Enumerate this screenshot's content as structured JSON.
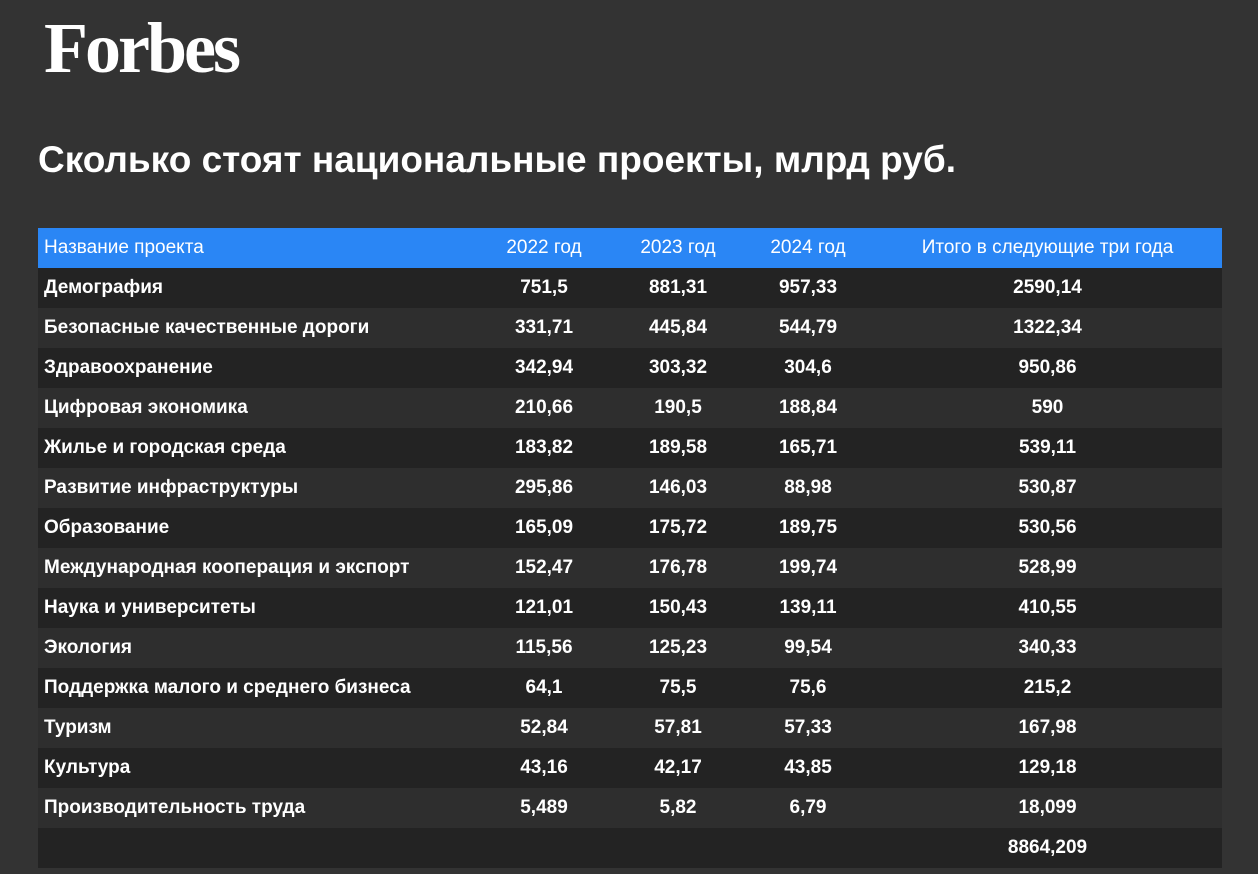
{
  "brand": {
    "logo_text": "Forbes"
  },
  "title": "Сколько стоят национальные проекты, млрд руб.",
  "colors": {
    "background": "#333333",
    "header": "#2a86f5",
    "row_dark": "#232323",
    "row_light": "#2e2e2e",
    "text": "#ffffff"
  },
  "chart_data": {
    "type": "table",
    "title": "Сколько стоят национальные проекты, млрд руб.",
    "columns": [
      "Название проекта",
      "2022 год",
      "2023 год",
      "2024 год",
      "Итого в следующие три года"
    ],
    "rows": [
      [
        "Демография",
        "751,5",
        "881,31",
        "957,33",
        "2590,14"
      ],
      [
        "Безопасные качественные дороги",
        "331,71",
        "445,84",
        "544,79",
        "1322,34"
      ],
      [
        "Здравоохранение",
        "342,94",
        "303,32",
        "304,6",
        "950,86"
      ],
      [
        "Цифровая экономика",
        "210,66",
        "190,5",
        "188,84",
        "590"
      ],
      [
        "Жилье и городская среда",
        "183,82",
        "189,58",
        "165,71",
        "539,11"
      ],
      [
        "Развитие инфраструктуры",
        "295,86",
        "146,03",
        "88,98",
        "530,87"
      ],
      [
        "Образование",
        "165,09",
        "175,72",
        "189,75",
        "530,56"
      ],
      [
        "Международная кооперация и экспорт",
        "152,47",
        "176,78",
        "199,74",
        "528,99"
      ],
      [
        "Наука и университеты",
        "121,01",
        "150,43",
        "139,11",
        "410,55"
      ],
      [
        "Экология",
        "115,56",
        "125,23",
        "99,54",
        "340,33"
      ],
      [
        "Поддержка малого и среднего бизнеса",
        "64,1",
        "75,5",
        "75,6",
        "215,2"
      ],
      [
        "Туризм",
        "52,84",
        "57,81",
        "57,33",
        "167,98"
      ],
      [
        "Культура",
        "43,16",
        "42,17",
        "43,85",
        "129,18"
      ],
      [
        "Производительность труда",
        "5,489",
        "5,82",
        "6,79",
        "18,099"
      ]
    ],
    "total": "8864,209"
  }
}
